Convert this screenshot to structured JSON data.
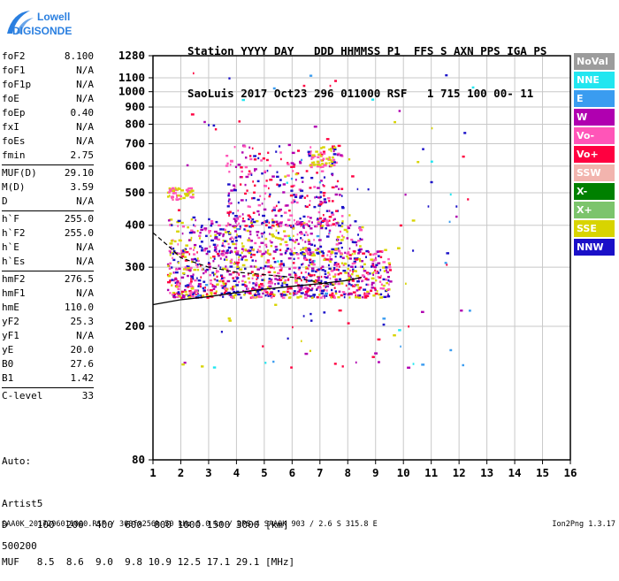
{
  "logo": {
    "line1": "Lowell",
    "line2": "DIGISONDE"
  },
  "header": {
    "line1": "Station YYYY DAY   DDD HHMMSS P1  FFS S AXN PPS IGA PS",
    "line2": "SaoLuis 2017 Oct23 296 011000 RSF   1 715 100 00- 11"
  },
  "params": {
    "group1": [
      {
        "label": "foF2",
        "value": "8.100"
      },
      {
        "label": "foF1",
        "value": "N/A"
      },
      {
        "label": "foF1p",
        "value": "N/A"
      },
      {
        "label": "foE",
        "value": "N/A"
      },
      {
        "label": "foEp",
        "value": "0.40"
      },
      {
        "label": "fxI",
        "value": "N/A"
      },
      {
        "label": "foEs",
        "value": "N/A"
      },
      {
        "label": "fmin",
        "value": "2.75"
      }
    ],
    "group2": [
      {
        "label": "MUF(D)",
        "value": "29.10"
      },
      {
        "label": "M(D)",
        "value": "3.59"
      },
      {
        "label": "D",
        "value": "N/A"
      }
    ],
    "group3": [
      {
        "label": "h`F",
        "value": "255.0"
      },
      {
        "label": "h`F2",
        "value": "255.0"
      },
      {
        "label": "h`E",
        "value": "N/A"
      },
      {
        "label": "h`Es",
        "value": "N/A"
      }
    ],
    "group4": [
      {
        "label": "hmF2",
        "value": "276.5"
      },
      {
        "label": "hmF1",
        "value": "N/A"
      },
      {
        "label": "hmE",
        "value": "110.0"
      },
      {
        "label": "yF2",
        "value": "25.3"
      },
      {
        "label": "yF1",
        "value": "N/A"
      },
      {
        "label": "yE",
        "value": "20.0"
      },
      {
        "label": "B0",
        "value": "27.6"
      },
      {
        "label": "B1",
        "value": "1.42"
      }
    ],
    "group5": [
      {
        "label": "C-level",
        "value": "33"
      }
    ]
  },
  "side": {
    "auto": "Auto:",
    "artist": "Artist5",
    "version": "500200"
  },
  "legend": [
    {
      "label": "NoVal",
      "color": "#9c9c9c"
    },
    {
      "label": "NNE",
      "color": "#22e6f0"
    },
    {
      "label": "E",
      "color": "#3a9cf0"
    },
    {
      "label": "W",
      "color": "#b000b0"
    },
    {
      "label": "Vo-",
      "color": "#ff55b8"
    },
    {
      "label": "Vo+",
      "color": "#ff0040"
    },
    {
      "label": "SSW",
      "color": "#f2b4ae"
    },
    {
      "label": "X-",
      "color": "#008000"
    },
    {
      "label": "X+",
      "color": "#7cc46c"
    },
    {
      "label": "SSE",
      "color": "#d8d400"
    },
    {
      "label": "NNW",
      "color": "#1a10c8"
    }
  ],
  "bottom": {
    "dline": "D     100  200  400  600  800 1000 1500 3000 [km]",
    "mline": "MUF   8.5  8.6  9.0  9.8 10.9 12.5 17.1 29.1 [MHz]"
  },
  "footer": {
    "left": "SAA0K_2017296011000.RSF / 300fx256h 50 kHz 5.0 km / DPS-4 SAA0K 903 / 2.6 S 315.8 E",
    "right": "Ion2Png 1.3.17"
  },
  "chart_data": {
    "type": "scatter",
    "xlim": [
      1,
      16
    ],
    "ylim": [
      80,
      1280
    ],
    "x_ticks": [
      1,
      2,
      3,
      4,
      5,
      6,
      7,
      8,
      9,
      10,
      11,
      12,
      13,
      14,
      15,
      16
    ],
    "y_ticks": [
      80,
      200,
      300,
      400,
      500,
      600,
      700,
      800,
      900,
      1000,
      1100,
      1280
    ],
    "y_scale": "log",
    "grid": true,
    "trace_curve": {
      "x": [
        1.0,
        2.0,
        3.0,
        4.0,
        5.0,
        6.0,
        7.0,
        8.0,
        8.5
      ],
      "y": [
        232,
        240,
        245,
        252,
        258,
        263,
        268,
        274,
        280
      ]
    },
    "dashed_curve": {
      "x": [
        1.0,
        1.5,
        2.0,
        3.0,
        4.0,
        5.0,
        6.0,
        7.0,
        7.5
      ],
      "y": [
        380,
        350,
        320,
        300,
        290,
        285,
        280,
        270,
        265
      ]
    },
    "clusters": [
      {
        "x": [
          1.5,
          9.5
        ],
        "y": [
          245,
          340
        ],
        "n": 900,
        "colors": [
          "#ff0040",
          "#ff55b8",
          "#b000b0",
          "#1a10c8",
          "#d8d400"
        ]
      },
      {
        "x": [
          1.5,
          8.5
        ],
        "y": [
          330,
          420
        ],
        "n": 380,
        "colors": [
          "#b000b0",
          "#1a10c8",
          "#ff55b8",
          "#d8d400"
        ]
      },
      {
        "x": [
          3.6,
          7.8
        ],
        "y": [
          400,
          700
        ],
        "n": 320,
        "colors": [
          "#b000b0",
          "#1a10c8",
          "#ff55b8",
          "#ff0040"
        ]
      },
      {
        "x": [
          1.5,
          2.4
        ],
        "y": [
          480,
          520
        ],
        "n": 60,
        "colors": [
          "#d8d400",
          "#ff55b8"
        ]
      },
      {
        "x": [
          6.6,
          7.5
        ],
        "y": [
          600,
          690
        ],
        "n": 50,
        "colors": [
          "#d8d400",
          "#ff55b8"
        ]
      },
      {
        "x": [
          1.5,
          12.5
        ],
        "y": [
          150,
          1250
        ],
        "n": 130,
        "colors": [
          "#b000b0",
          "#1a10c8",
          "#ff0040",
          "#d8d400",
          "#3a9cf0",
          "#22e6f0"
        ]
      }
    ]
  }
}
